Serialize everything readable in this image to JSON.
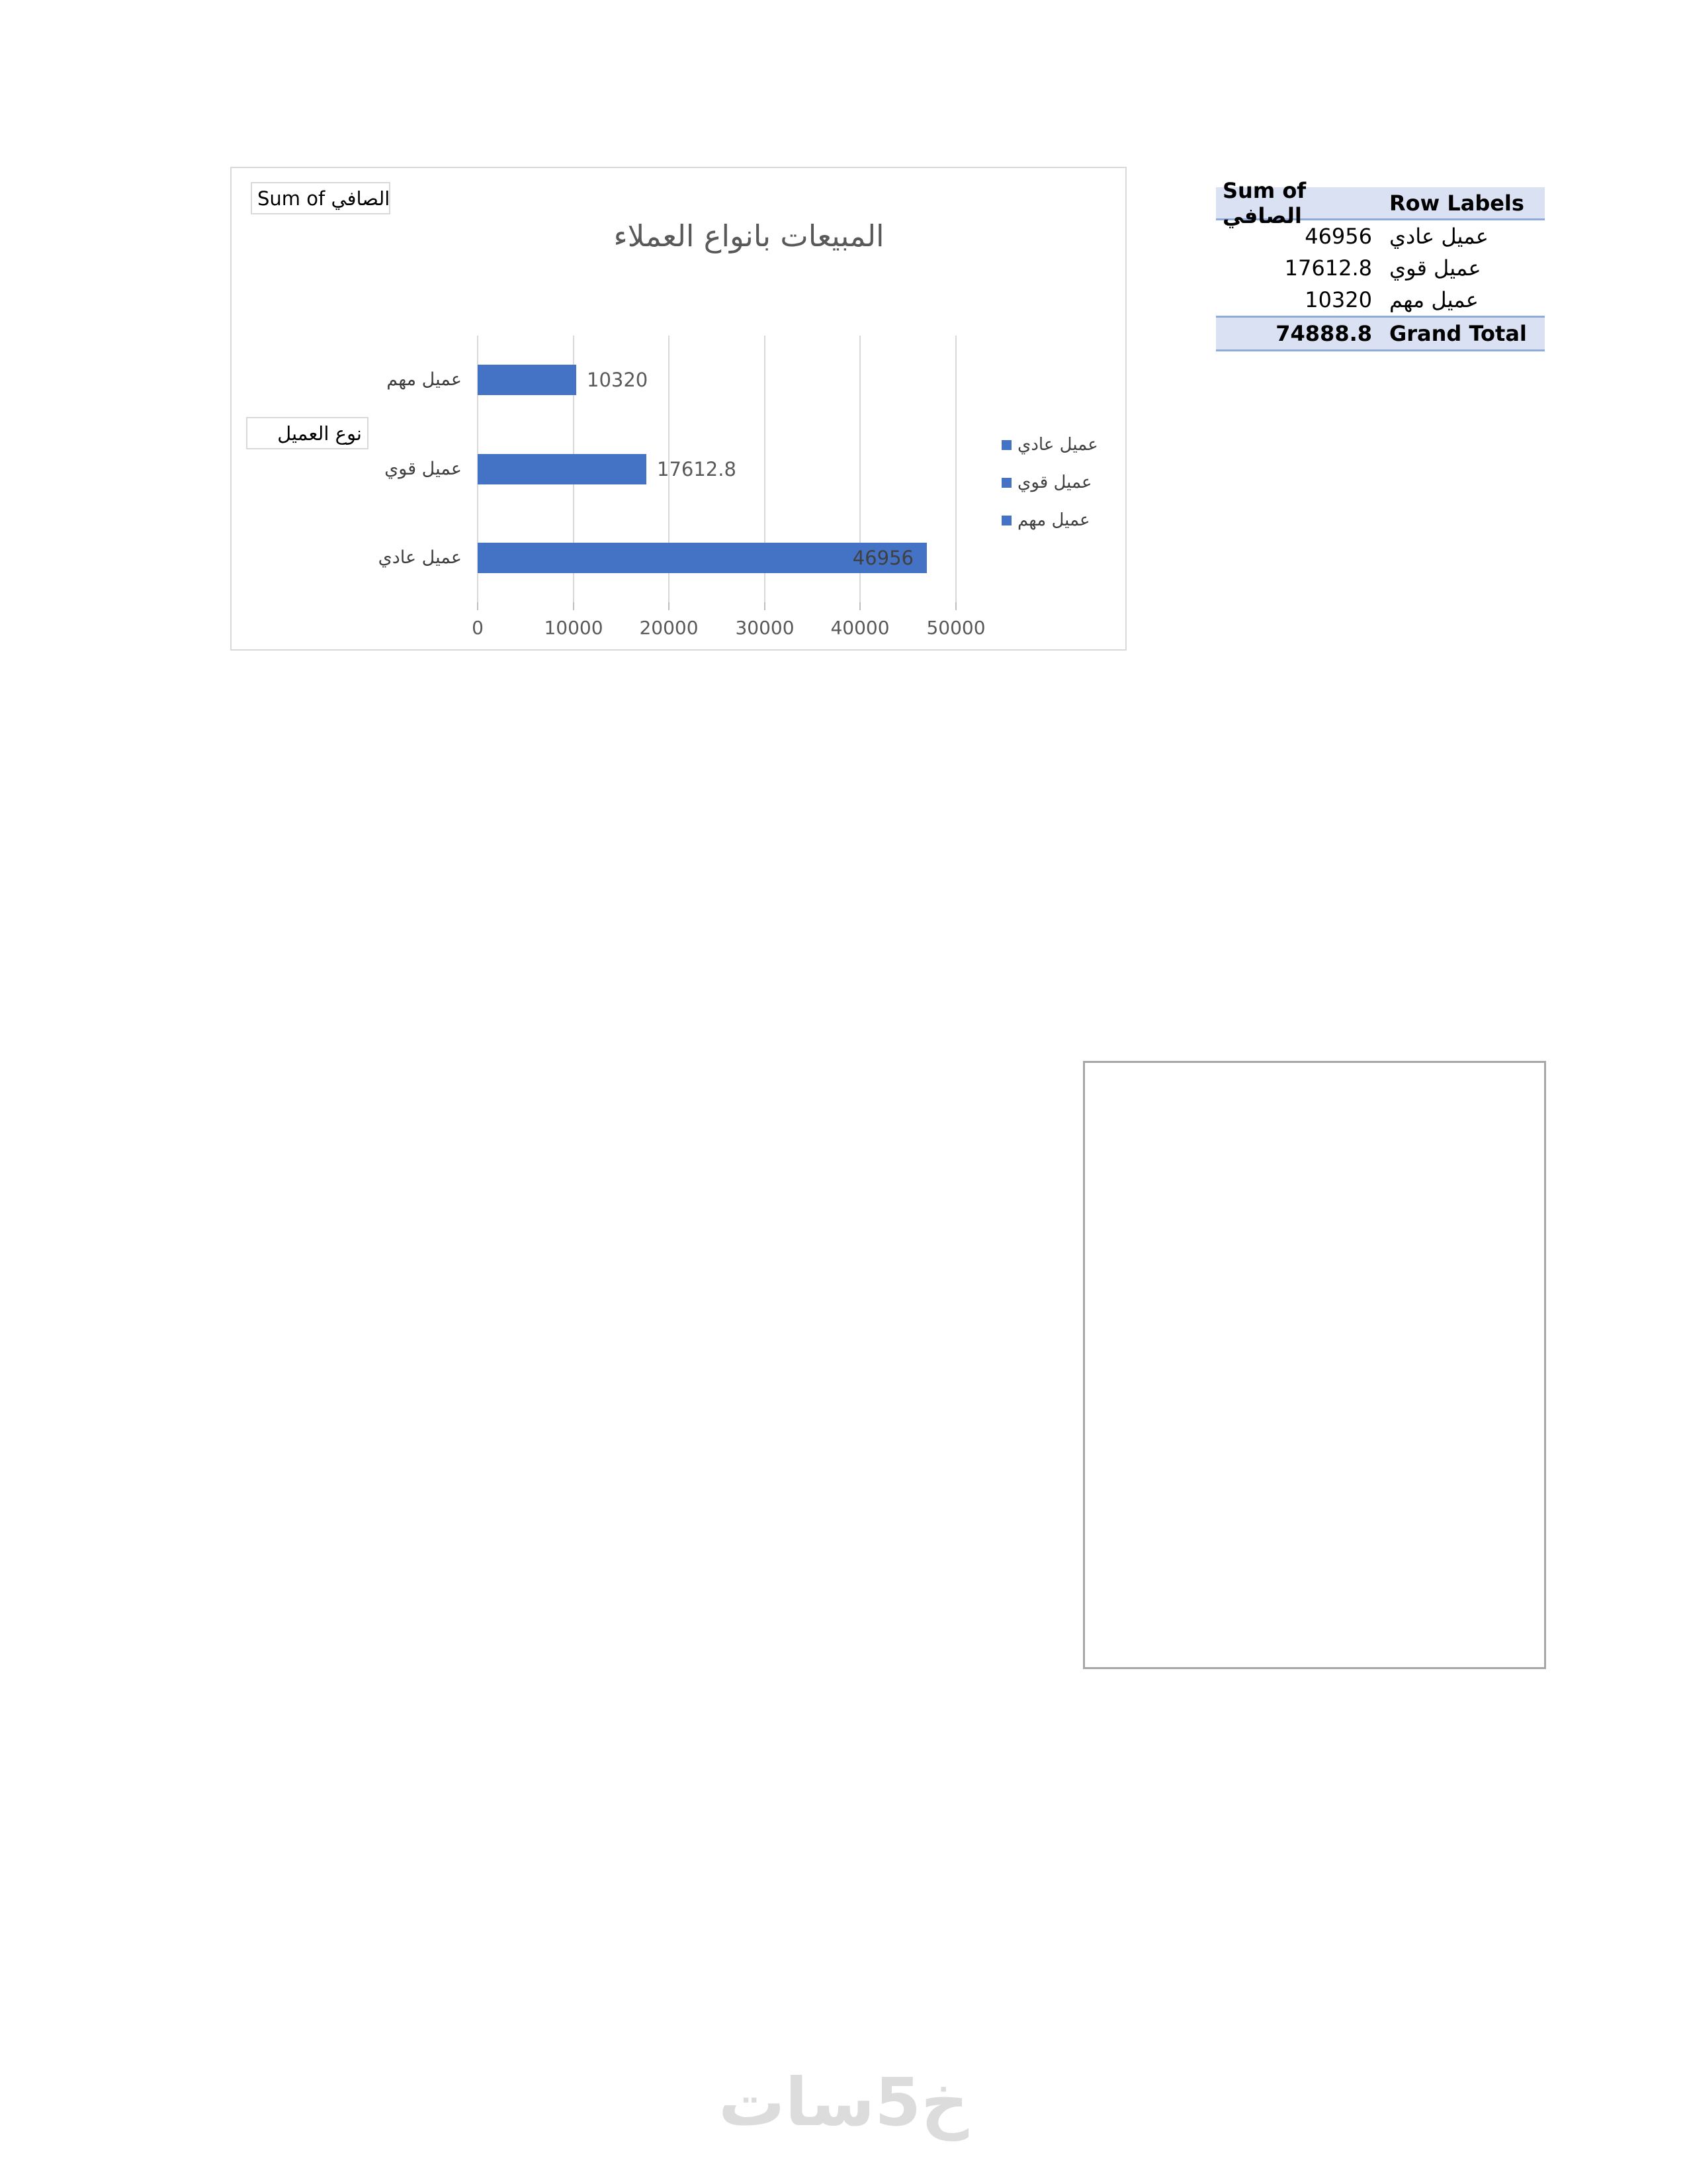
{
  "chart": {
    "value_field_button": "Sum of الصافي",
    "axis_field_button": "نوع العميل",
    "title": "المبيعات بانواع العملاء",
    "legend": [
      {
        "label": "عميل عادي"
      },
      {
        "label": "عميل قوي"
      },
      {
        "label": "عميل مهم"
      }
    ]
  },
  "chart_data": {
    "type": "bar",
    "orientation": "horizontal",
    "title": "المبيعات بانواع العملاء",
    "categories": [
      "عميل مهم",
      "عميل قوي",
      "عميل عادي"
    ],
    "values": [
      10320,
      17612.8,
      46956
    ],
    "value_labels": [
      "10320",
      "17612.8",
      "46956"
    ],
    "xlim": [
      0,
      50000
    ],
    "x_ticks": [
      0,
      10000,
      20000,
      30000,
      40000,
      50000
    ],
    "x_tick_labels": [
      "0",
      "10000",
      "20000",
      "30000",
      "40000",
      "50000"
    ],
    "grid": true,
    "legend_position": "right",
    "legend": [
      "عميل عادي",
      "عميل قوي",
      "عميل مهم"
    ],
    "bar_color": "#4472c4"
  },
  "pivot_table": {
    "headers": {
      "value": "Sum of الصافي",
      "label": "Row Labels"
    },
    "rows": [
      {
        "value": "46956",
        "label": "عميل عادي"
      },
      {
        "value": "17612.8",
        "label": "عميل قوي"
      },
      {
        "value": "10320",
        "label": "عميل مهم"
      }
    ],
    "grand_total": {
      "value": "74888.8",
      "label": "Grand Total"
    }
  },
  "watermark": "خ5سات",
  "colors": {
    "bar": "#4472c4",
    "gridline": "#d9d9d9",
    "chart_border": "#d9d9d9",
    "axis_text": "#595959",
    "table_header_bg": "#d9e1f2",
    "table_border": "#8faadc",
    "shape_border": "#a6a6a6"
  }
}
